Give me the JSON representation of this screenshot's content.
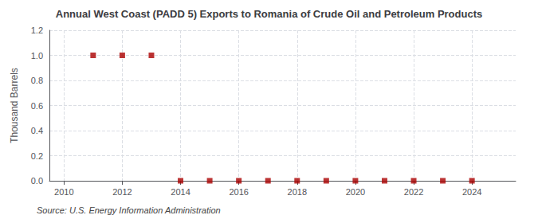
{
  "chart_data": {
    "type": "scatter",
    "title": "Annual West Coast (PADD 5) Exports to Romania of Crude Oil and Petroleum Products",
    "ylabel": "Thousand Barrels",
    "source": "Source: U.S. Energy Information Administration",
    "x": [
      2011,
      2012,
      2013,
      2014,
      2015,
      2016,
      2017,
      2018,
      2019,
      2020,
      2021,
      2022,
      2023,
      2024
    ],
    "values": [
      1.0,
      1.0,
      1.0,
      0.0,
      0.0,
      0.0,
      0.0,
      0.0,
      0.0,
      0.0,
      0.0,
      0.0,
      0.0,
      0.0
    ],
    "color": "#aa0000",
    "marker": "square",
    "xlim": [
      2009.5,
      2025.5
    ],
    "xticks": [
      2010,
      2012,
      2014,
      2016,
      2018,
      2020,
      2022,
      2024
    ],
    "ylim": [
      0.0,
      1.2
    ],
    "yticks": [
      {
        "value": 0.0,
        "label": "0.0"
      },
      0.2,
      0.4,
      0.6,
      0.8,
      {
        "value": 1.0,
        "label": "1.0"
      },
      1.2
    ],
    "grid": true
  }
}
